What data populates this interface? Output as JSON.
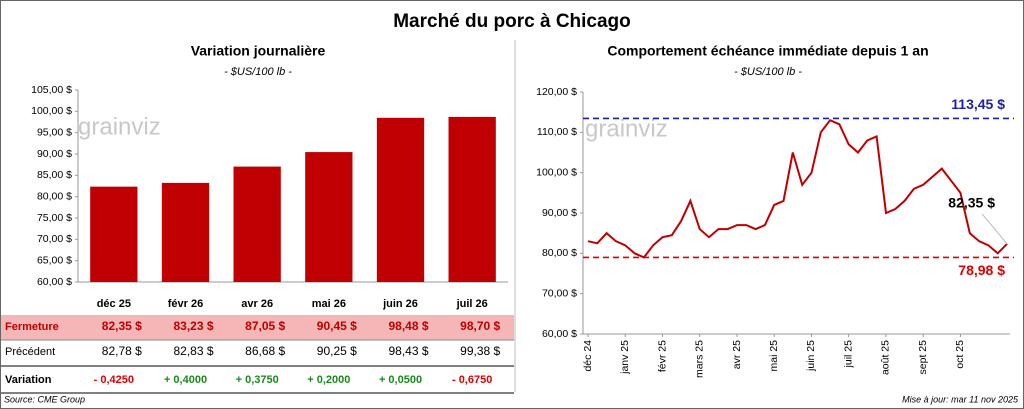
{
  "title": "Marché du porc à Chicago",
  "chart_data": [
    {
      "type": "bar",
      "title": "Variation journalière",
      "subtitle": "- $US/100 lb -",
      "watermark": "grainviz",
      "categories": [
        "déc 25",
        "févr 26",
        "avr 26",
        "mai 26",
        "juin 26",
        "juil 26"
      ],
      "values": [
        82.35,
        83.23,
        87.05,
        90.45,
        98.48,
        98.7
      ],
      "value_labels": [
        "82,35 $",
        "83,23 $",
        "87,05 $",
        "90,45 $",
        "98,48 $",
        "98,70 $"
      ],
      "color": "#c00000",
      "ylim": [
        60,
        105
      ],
      "yticks": [
        {
          "value": 60,
          "label": "60,00 $"
        },
        {
          "value": 65,
          "label": "65,00 $"
        },
        {
          "value": 70,
          "label": "70,00 $"
        },
        {
          "value": 75,
          "label": "75,00 $"
        },
        {
          "value": 80,
          "label": "80,00 $"
        },
        {
          "value": 85,
          "label": "85,00 $"
        },
        {
          "value": 90,
          "label": "90,00 $"
        },
        {
          "value": 95,
          "label": "95,00 $"
        },
        {
          "value": 100,
          "label": "100,00 $"
        },
        {
          "value": 105,
          "label": "105,00 $"
        }
      ]
    },
    {
      "type": "line",
      "title": "Comportement échéance immédiate depuis 1 an",
      "subtitle": "- $US/100 lb -",
      "watermark": "grainviz",
      "categories": [
        "déc 24",
        null,
        null,
        null,
        "janv 25",
        null,
        null,
        null,
        "févr 25",
        null,
        null,
        null,
        "mars 25",
        null,
        null,
        null,
        "avr 25",
        null,
        null,
        null,
        "mai 25",
        null,
        null,
        null,
        "juin 25",
        null,
        null,
        null,
        "juil 25",
        null,
        null,
        null,
        "août 25",
        null,
        null,
        null,
        "sept 25",
        null,
        null,
        null,
        "oct 25",
        null,
        null,
        null,
        null,
        null
      ],
      "values": [
        83,
        82.5,
        85,
        83,
        82,
        80,
        79,
        82,
        84,
        84.5,
        88,
        93,
        86,
        84,
        86,
        86,
        87,
        87,
        86,
        87,
        92,
        93,
        105,
        97,
        100,
        110,
        113,
        112,
        107,
        105,
        108,
        109,
        90,
        91,
        93,
        96,
        97,
        99,
        101,
        98,
        95,
        85,
        83,
        82,
        80,
        82.35
      ],
      "color": "#c00000",
      "ylim": [
        60,
        120
      ],
      "yticks": [
        {
          "value": 60,
          "label": "60,00 $"
        },
        {
          "value": 70,
          "label": "70,00 $"
        },
        {
          "value": 80,
          "label": "80,00 $"
        },
        {
          "value": 90,
          "label": "90,00 $"
        },
        {
          "value": 100,
          "label": "100,00 $"
        },
        {
          "value": 110,
          "label": "110,00 $"
        },
        {
          "value": 120,
          "label": "120,00 $"
        }
      ],
      "reference_lines": [
        {
          "value": 113.45,
          "label": "113,45 $",
          "color": "#1f1fa8"
        },
        {
          "value": 78.98,
          "label": "78,98 $",
          "color": "#e00000"
        }
      ],
      "annotations": [
        {
          "value": 82.35,
          "label": "82,35 $"
        }
      ]
    }
  ],
  "table": {
    "closing_label": "Fermeture",
    "rows": [
      [
        "Précédent",
        "82,78 $",
        "82,83 $",
        "86,68 $",
        "90,25 $",
        "98,43 $",
        "99,38 $"
      ],
      [
        "Variation",
        "- 0,4250",
        "+ 0,4000",
        "+ 0,3750",
        "+ 0,2000",
        "+ 0,0500",
        "- 0,6750"
      ]
    ]
  },
  "footer": {
    "source": "Source: CME Group",
    "updated": "Mise à jour: mar 11 nov 2025"
  }
}
